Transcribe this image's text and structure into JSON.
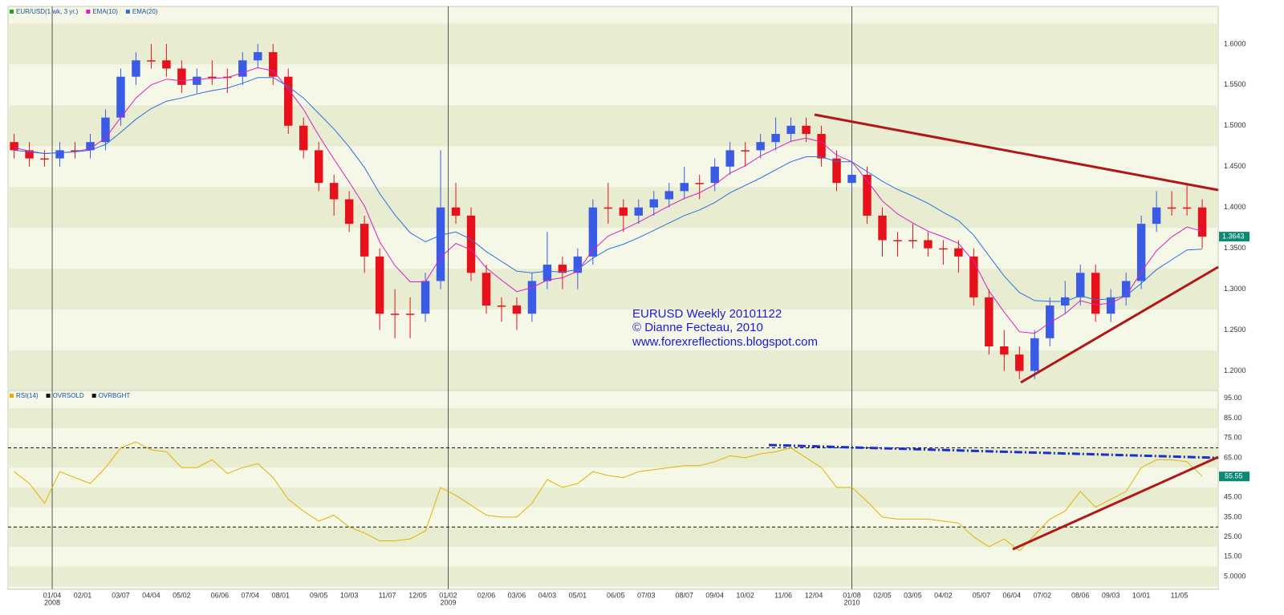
{
  "chart_data": [
    {
      "type": "candlestick",
      "legend": [
        "EUR/USD(1 wk, 3 yr.)",
        "EMA(10)",
        "EMA(20)"
      ],
      "legend_colors": [
        "#1aa51a",
        "#d81ec8",
        "#2a6fe0"
      ],
      "up_color": "#3a5be6",
      "down_color": "#e8101a",
      "annotations": [
        "EURUSD Weekly 20101122",
        "© Dianne Fecteau, 2010",
        "www.forexreflections.blogspot.com"
      ],
      "x": [
        -5,
        -3,
        -1,
        1,
        3,
        5,
        7,
        9,
        11,
        13,
        15,
        17,
        19,
        21,
        23,
        25,
        27,
        29,
        31,
        33,
        35,
        37,
        39,
        41,
        43,
        45,
        47,
        49,
        51,
        53,
        55,
        57,
        59,
        61,
        63,
        65,
        67,
        69,
        71,
        73,
        75,
        77,
        79,
        81,
        83,
        85,
        87,
        89,
        91,
        93,
        95,
        97,
        99,
        101,
        103,
        105,
        107,
        109,
        111,
        113,
        115,
        117,
        119,
        121,
        123,
        125,
        127,
        129,
        131,
        133,
        135,
        137,
        139,
        141,
        143,
        145,
        147,
        149,
        151
      ],
      "open": [
        1.48,
        1.47,
        1.46,
        1.46,
        1.47,
        1.47,
        1.48,
        1.51,
        1.56,
        1.58,
        1.58,
        1.57,
        1.55,
        1.56,
        1.56,
        1.56,
        1.58,
        1.59,
        1.56,
        1.5,
        1.47,
        1.43,
        1.41,
        1.38,
        1.34,
        1.27,
        1.27,
        1.27,
        1.31,
        1.4,
        1.39,
        1.32,
        1.28,
        1.28,
        1.27,
        1.31,
        1.33,
        1.32,
        1.34,
        1.4,
        1.4,
        1.39,
        1.4,
        1.41,
        1.42,
        1.43,
        1.43,
        1.45,
        1.47,
        1.47,
        1.48,
        1.49,
        1.5,
        1.49,
        1.46,
        1.43,
        1.44,
        1.39,
        1.36,
        1.36,
        1.36,
        1.35,
        1.35,
        1.34,
        1.29,
        1.23,
        1.22,
        1.2,
        1.24,
        1.28,
        1.29,
        1.32,
        1.27,
        1.29,
        1.31,
        1.38,
        1.4,
        1.4,
        1.4
      ],
      "high": [
        1.49,
        1.48,
        1.47,
        1.48,
        1.48,
        1.49,
        1.52,
        1.57,
        1.59,
        1.6,
        1.6,
        1.58,
        1.57,
        1.58,
        1.57,
        1.59,
        1.6,
        1.6,
        1.57,
        1.51,
        1.48,
        1.44,
        1.42,
        1.39,
        1.35,
        1.3,
        1.29,
        1.32,
        1.47,
        1.43,
        1.4,
        1.33,
        1.29,
        1.29,
        1.32,
        1.37,
        1.34,
        1.35,
        1.41,
        1.43,
        1.41,
        1.41,
        1.42,
        1.43,
        1.45,
        1.44,
        1.46,
        1.48,
        1.48,
        1.49,
        1.51,
        1.51,
        1.51,
        1.5,
        1.47,
        1.46,
        1.45,
        1.4,
        1.37,
        1.38,
        1.37,
        1.36,
        1.36,
        1.35,
        1.3,
        1.25,
        1.23,
        1.25,
        1.29,
        1.31,
        1.33,
        1.33,
        1.3,
        1.32,
        1.39,
        1.42,
        1.42,
        1.43,
        1.41
      ],
      "low": [
        1.46,
        1.45,
        1.45,
        1.45,
        1.46,
        1.46,
        1.47,
        1.5,
        1.55,
        1.57,
        1.56,
        1.54,
        1.54,
        1.55,
        1.54,
        1.55,
        1.57,
        1.55,
        1.49,
        1.46,
        1.42,
        1.39,
        1.37,
        1.32,
        1.25,
        1.24,
        1.24,
        1.26,
        1.3,
        1.38,
        1.31,
        1.27,
        1.26,
        1.25,
        1.26,
        1.3,
        1.3,
        1.3,
        1.33,
        1.38,
        1.37,
        1.38,
        1.39,
        1.4,
        1.41,
        1.41,
        1.42,
        1.44,
        1.45,
        1.46,
        1.47,
        1.48,
        1.48,
        1.45,
        1.42,
        1.42,
        1.38,
        1.34,
        1.34,
        1.35,
        1.34,
        1.33,
        1.32,
        1.28,
        1.22,
        1.2,
        1.19,
        1.19,
        1.23,
        1.27,
        1.28,
        1.26,
        1.26,
        1.28,
        1.3,
        1.37,
        1.39,
        1.39,
        1.35
      ],
      "close": [
        1.47,
        1.46,
        1.46,
        1.47,
        1.47,
        1.48,
        1.51,
        1.56,
        1.58,
        1.58,
        1.57,
        1.55,
        1.56,
        1.56,
        1.56,
        1.58,
        1.59,
        1.56,
        1.5,
        1.47,
        1.43,
        1.41,
        1.38,
        1.34,
        1.27,
        1.27,
        1.27,
        1.31,
        1.4,
        1.39,
        1.32,
        1.28,
        1.28,
        1.27,
        1.31,
        1.33,
        1.32,
        1.34,
        1.4,
        1.4,
        1.39,
        1.4,
        1.41,
        1.42,
        1.43,
        1.43,
        1.45,
        1.47,
        1.47,
        1.48,
        1.49,
        1.5,
        1.49,
        1.46,
        1.43,
        1.44,
        1.39,
        1.36,
        1.36,
        1.36,
        1.35,
        1.35,
        1.34,
        1.29,
        1.23,
        1.22,
        1.2,
        1.24,
        1.28,
        1.29,
        1.32,
        1.27,
        1.29,
        1.31,
        1.38,
        1.4,
        1.4,
        1.4,
        1.3643
      ],
      "series": [
        {
          "name": "EMA(10)",
          "color": "#d81ec8",
          "values": [
            1.473,
            1.469,
            1.466,
            1.467,
            1.468,
            1.472,
            1.485,
            1.51,
            1.534,
            1.55,
            1.557,
            1.555,
            1.557,
            1.558,
            1.559,
            1.565,
            1.571,
            1.567,
            1.545,
            1.52,
            1.488,
            1.459,
            1.431,
            1.402,
            1.358,
            1.329,
            1.309,
            1.309,
            1.339,
            1.356,
            1.348,
            1.326,
            1.311,
            1.297,
            1.302,
            1.311,
            1.314,
            1.322,
            1.348,
            1.365,
            1.373,
            1.382,
            1.392,
            1.402,
            1.411,
            1.418,
            1.428,
            1.442,
            1.451,
            1.463,
            1.472,
            1.481,
            1.485,
            1.48,
            1.464,
            1.456,
            1.433,
            1.408,
            1.392,
            1.381,
            1.371,
            1.364,
            1.356,
            1.334,
            1.298,
            1.272,
            1.248,
            1.246,
            1.259,
            1.27,
            1.286,
            1.281,
            1.283,
            1.292,
            1.321,
            1.347,
            1.364,
            1.376,
            1.371
          ]
        },
        {
          "name": "EMA(20)",
          "color": "#2a6fe0",
          "values": [
            1.47,
            1.468,
            1.466,
            1.467,
            1.468,
            1.47,
            1.477,
            1.492,
            1.508,
            1.521,
            1.53,
            1.534,
            1.539,
            1.543,
            1.546,
            1.552,
            1.559,
            1.559,
            1.548,
            1.534,
            1.515,
            1.496,
            1.474,
            1.449,
            1.417,
            1.391,
            1.369,
            1.358,
            1.366,
            1.37,
            1.361,
            1.346,
            1.334,
            1.322,
            1.32,
            1.322,
            1.321,
            1.324,
            1.338,
            1.349,
            1.355,
            1.363,
            1.372,
            1.381,
            1.39,
            1.397,
            1.406,
            1.418,
            1.427,
            1.436,
            1.446,
            1.456,
            1.462,
            1.462,
            1.456,
            1.456,
            1.444,
            1.432,
            1.422,
            1.414,
            1.405,
            1.394,
            1.384,
            1.366,
            1.341,
            1.316,
            1.296,
            1.286,
            1.285,
            1.285,
            1.292,
            1.287,
            1.288,
            1.292,
            1.307,
            1.324,
            1.336,
            1.348,
            1.349
          ]
        }
      ],
      "xlim": [
        -5.8,
        153.1
      ],
      "ylim": [
        1.178,
        1.646
      ],
      "yticks": [
        {
          "value": 1.2,
          "label": "1.2000"
        },
        {
          "value": 1.25,
          "label": "1.2500"
        },
        {
          "value": 1.3,
          "label": "1.3000"
        },
        {
          "value": 1.35,
          "label": "1.3500"
        },
        {
          "value": 1.4,
          "label": "1.4000"
        },
        {
          "value": 1.45,
          "label": "1.4500"
        },
        {
          "value": 1.5,
          "label": "1.5000"
        },
        {
          "value": 1.55,
          "label": "1.5500"
        },
        {
          "value": 1.6,
          "label": "1.6000"
        }
      ]
    },
    {
      "type": "line",
      "legend": [
        "RSI(14)",
        "OVRSOLD",
        "OVRBGHT"
      ],
      "legend_colors": [
        "#e0b400",
        "#111111",
        "#111111"
      ],
      "series": [
        {
          "name": "RSI(14)",
          "color": "#e0b400",
          "values": [
            58,
            52,
            42,
            58,
            55,
            52,
            60,
            70,
            73,
            69,
            68,
            60,
            60,
            64,
            57,
            60,
            62,
            55,
            44,
            38,
            33,
            36,
            30,
            27,
            23,
            23,
            24,
            28,
            50,
            46,
            41,
            36,
            35,
            35,
            42,
            54,
            50,
            52,
            58,
            56,
            55,
            58,
            59,
            60,
            61,
            61,
            63,
            66,
            65,
            67,
            68,
            70,
            65,
            60,
            50,
            50,
            43,
            35,
            34,
            34,
            34,
            33,
            32,
            25,
            20,
            24,
            18,
            26,
            34,
            38,
            48,
            40,
            44,
            48,
            60,
            64,
            64,
            63,
            55.55
          ]
        }
      ],
      "levels": [
        30,
        70
      ],
      "ylim": [
        -1.5,
        99
      ],
      "yticks": [
        {
          "value": 5,
          "label": "5.0000"
        },
        {
          "value": 15,
          "label": "15.00"
        },
        {
          "value": 25,
          "label": "25.00"
        },
        {
          "value": 35,
          "label": "35.00"
        },
        {
          "value": 45,
          "label": "45.00"
        },
        {
          "value": 55,
          "label": "55.00"
        },
        {
          "value": 65,
          "label": "65.00"
        },
        {
          "value": 75,
          "label": "75.00"
        },
        {
          "value": 85,
          "label": "85.00"
        },
        {
          "value": 95,
          "label": "95.00"
        }
      ],
      "xlim": [
        -5.8,
        153.1
      ],
      "xticks": [
        {
          "value": 0,
          "label": "01/04"
        },
        {
          "value": 4,
          "label": "02/01"
        },
        {
          "value": 9,
          "label": "03/07"
        },
        {
          "value": 13,
          "label": "04/04"
        },
        {
          "value": 17,
          "label": "05/02"
        },
        {
          "value": 22,
          "label": "06/06"
        },
        {
          "value": 26,
          "label": "07/04"
        },
        {
          "value": 30,
          "label": "08/01"
        },
        {
          "value": 35,
          "label": "09/05"
        },
        {
          "value": 39,
          "label": "10/03"
        },
        {
          "value": 44,
          "label": "11/07"
        },
        {
          "value": 48,
          "label": "12/05"
        },
        {
          "value": 52,
          "label": "01/02"
        },
        {
          "value": 57,
          "label": "02/06"
        },
        {
          "value": 61,
          "label": "03/06"
        },
        {
          "value": 65,
          "label": "04/03"
        },
        {
          "value": 69,
          "label": "05/01"
        },
        {
          "value": 74,
          "label": "06/05"
        },
        {
          "value": 78,
          "label": "07/03"
        },
        {
          "value": 83,
          "label": "08/07"
        },
        {
          "value": 87,
          "label": "09/04"
        },
        {
          "value": 91,
          "label": "10/02"
        },
        {
          "value": 96,
          "label": "11/06"
        },
        {
          "value": 100,
          "label": "12/04"
        },
        {
          "value": 105,
          "label": "01/08"
        },
        {
          "value": 109,
          "label": "02/05"
        },
        {
          "value": 113,
          "label": "03/05"
        },
        {
          "value": 117,
          "label": "04/02"
        },
        {
          "value": 122,
          "label": "05/07"
        },
        {
          "value": 126,
          "label": "06/04"
        },
        {
          "value": 130,
          "label": "07/02"
        },
        {
          "value": 135,
          "label": "08/06"
        },
        {
          "value": 139,
          "label": "09/03"
        },
        {
          "value": 143,
          "label": "10/01"
        },
        {
          "value": 148,
          "label": "11/05"
        }
      ],
      "year_markers": [
        {
          "value": 0,
          "label": "2008"
        },
        {
          "value": 52,
          "label": "2009"
        },
        {
          "value": 105,
          "label": "2010"
        }
      ]
    }
  ]
}
